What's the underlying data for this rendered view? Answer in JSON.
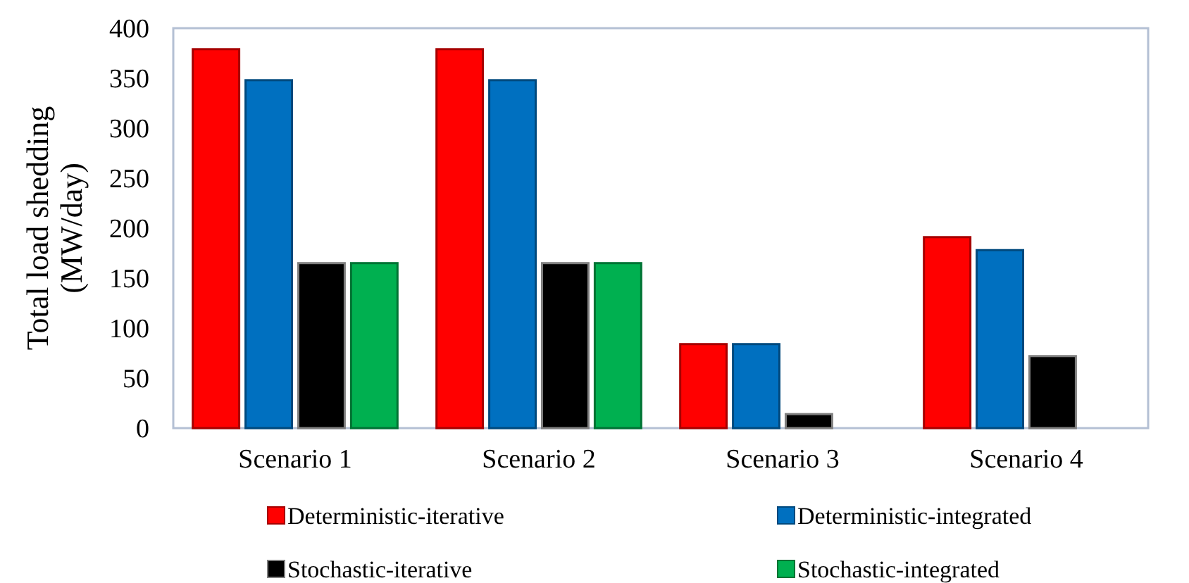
{
  "chart_data": {
    "type": "bar",
    "ylabel": "Total load shedding (MW/day)",
    "categories": [
      "Scenario 1",
      "Scenario 2",
      "Scenario 3",
      "Scenario 4"
    ],
    "series": [
      {
        "name": "Deterministic-iterative",
        "color": "#ff0000",
        "values": [
          379,
          379,
          84,
          191
        ]
      },
      {
        "name": "Deterministic-integrated",
        "color": "#0070c0",
        "values": [
          348,
          348,
          84,
          178
        ]
      },
      {
        "name": "Stochastic-iterative",
        "color": "#000000",
        "values": [
          165,
          165,
          14,
          72
        ]
      },
      {
        "name": "Stochastic-integrated",
        "color": "#00b050",
        "values": [
          165,
          165,
          null,
          null
        ]
      }
    ],
    "ylim": [
      0,
      400
    ],
    "yticks": [
      0,
      50,
      100,
      150,
      200,
      250,
      300,
      350,
      400
    ],
    "grid": false,
    "legend": "bottom"
  }
}
